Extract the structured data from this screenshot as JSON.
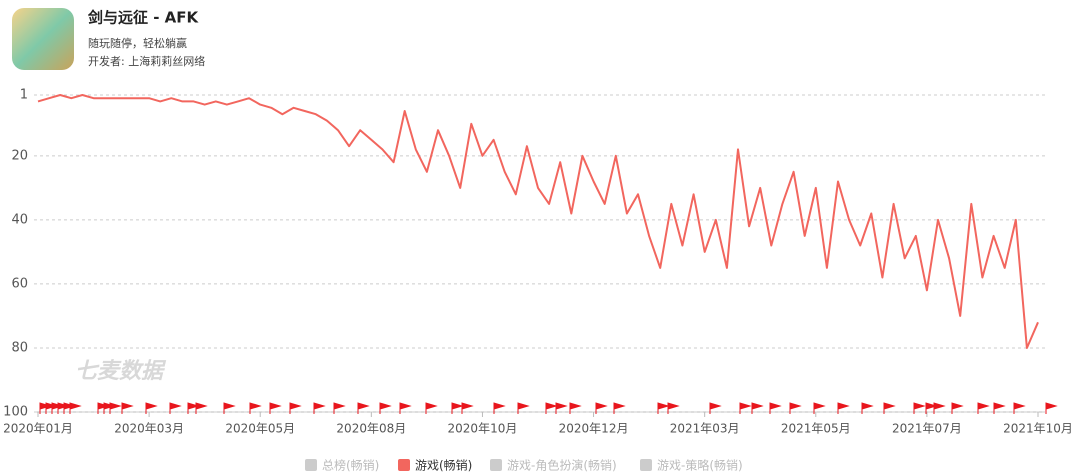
{
  "header": {
    "title": "剑与远征 - AFK",
    "slogan": "随玩随停，轻松躺赢",
    "developer": "开发者: 上海莉莉丝网络"
  },
  "chart_data": {
    "type": "line",
    "watermark": "七麦数据",
    "categories": [
      "2020年01月",
      null,
      null,
      null,
      null,
      null,
      null,
      null,
      null,
      null,
      "2020年03月",
      null,
      null,
      null,
      null,
      null,
      null,
      null,
      null,
      null,
      "2020年05月",
      null,
      null,
      null,
      null,
      null,
      null,
      null,
      null,
      null,
      "2020年08月",
      null,
      null,
      null,
      null,
      null,
      null,
      null,
      null,
      null,
      "2020年10月",
      null,
      null,
      null,
      null,
      null,
      null,
      null,
      null,
      null,
      "2020年12月",
      null,
      null,
      null,
      null,
      null,
      null,
      null,
      null,
      null,
      "2021年03月",
      null,
      null,
      null,
      null,
      null,
      null,
      null,
      null,
      null,
      "2021年05月",
      null,
      null,
      null,
      null,
      null,
      null,
      null,
      null,
      null,
      "2021年07月",
      null,
      null,
      null,
      null,
      null,
      null,
      null,
      null,
      null,
      "2021年10月"
    ],
    "series": [
      {
        "name": "游戏(畅销)",
        "color": "#f2665e",
        "values": [
          3,
          2,
          1,
          2,
          1,
          2,
          2,
          2,
          2,
          2,
          2,
          3,
          2,
          3,
          3,
          4,
          3,
          4,
          3,
          2,
          4,
          5,
          7,
          5,
          6,
          7,
          9,
          12,
          17,
          12,
          15,
          18,
          22,
          6,
          18,
          25,
          12,
          20,
          30,
          10,
          20,
          15,
          25,
          32,
          17,
          30,
          35,
          22,
          38,
          20,
          28,
          35,
          20,
          38,
          32,
          45,
          55,
          35,
          48,
          32,
          50,
          40,
          55,
          18,
          42,
          30,
          48,
          35,
          25,
          45,
          30,
          55,
          28,
          40,
          48,
          38,
          58,
          35,
          52,
          45,
          62,
          40,
          52,
          70,
          35,
          58,
          45,
          55,
          40,
          80,
          72
        ]
      }
    ],
    "inactive_series": [
      {
        "name": "总榜(畅销)",
        "color": "#cccccc"
      },
      {
        "name": "游戏-角色扮演(畅销)",
        "color": "#cccccc"
      },
      {
        "name": "游戏-策略(畅销)",
        "color": "#cccccc"
      }
    ],
    "ylim": [
      1,
      100
    ],
    "y_inverted": true,
    "yticks": [
      1,
      20,
      40,
      60,
      80,
      100
    ],
    "grid": true
  }
}
